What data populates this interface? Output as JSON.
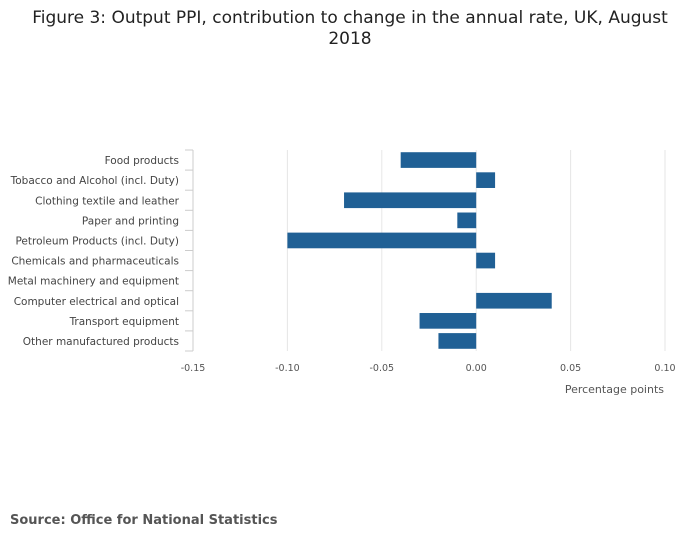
{
  "title": "Figure 3: Output PPI, contribution to change in the annual rate, UK, August 2018",
  "source": "Source: Office for National Statistics",
  "chart_data": {
    "type": "bar",
    "orientation": "horizontal",
    "title": "Figure 3: Output PPI, contribution to change in the annual rate, UK, August 2018",
    "xlabel": "Percentage points",
    "ylabel": "",
    "xlim": [
      -0.15,
      0.1
    ],
    "xticks": [
      "-0.15",
      "-0.10",
      "-0.05",
      "0.00",
      "0.05",
      "0.10"
    ],
    "xtick_values": [
      -0.15,
      -0.1,
      -0.05,
      0.0,
      0.05,
      0.1
    ],
    "grid": true,
    "bar_color": "#206095",
    "categories": [
      "Food products",
      "Tobacco and Alcohol (incl. Duty)",
      "Clothing textile and leather",
      "Paper and printing",
      "Petroleum Products (incl. Duty)",
      "Chemicals and pharmaceuticals",
      "Metal machinery and equipment",
      "Computer electrical and optical",
      "Transport equipment",
      "Other manufactured products"
    ],
    "values": [
      -0.04,
      0.01,
      -0.07,
      -0.01,
      -0.1,
      0.01,
      0.0,
      0.04,
      -0.03,
      -0.02
    ]
  }
}
